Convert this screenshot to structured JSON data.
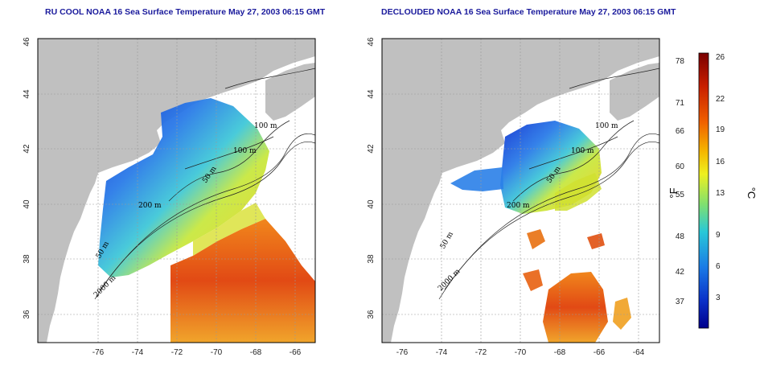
{
  "titles": {
    "left": "RU COOL NOAA 16 Sea Surface Temperature May 27, 2003 06:15 GMT",
    "right": "DECLOUDED NOAA 16 Sea Surface Temperature May 27, 2003 06:15 GMT"
  },
  "axes": {
    "x_ticks": [
      "-76",
      "-74",
      "-72",
      "-70",
      "-68",
      "-66",
      "-64"
    ],
    "y_ticks": [
      "46",
      "44",
      "42",
      "40",
      "38",
      "36"
    ]
  },
  "contour_labels": {
    "left": [
      "100 m",
      "100 m",
      "50 m",
      "200 m",
      "50 m",
      "2000 m"
    ],
    "right": [
      "100 m",
      "100 m",
      "50 m",
      "200 m",
      "50 m",
      "2000 m"
    ]
  },
  "colorbar": {
    "fahrenheit_ticks": [
      "78",
      "71",
      "66",
      "60",
      "55",
      "48",
      "42",
      "37"
    ],
    "celsius_ticks": [
      "26",
      "22",
      "19",
      "16",
      "13",
      "9",
      "6",
      "3"
    ],
    "fahrenheit_unit": "°F",
    "celsius_unit": "°C",
    "colors": [
      "#7a0000",
      "#c81e00",
      "#f06000",
      "#f5b800",
      "#eef020",
      "#7fe070",
      "#28c8d8",
      "#1a7ae6",
      "#0a30c8",
      "#00008c"
    ]
  },
  "land_color": "#c0c0c0"
}
